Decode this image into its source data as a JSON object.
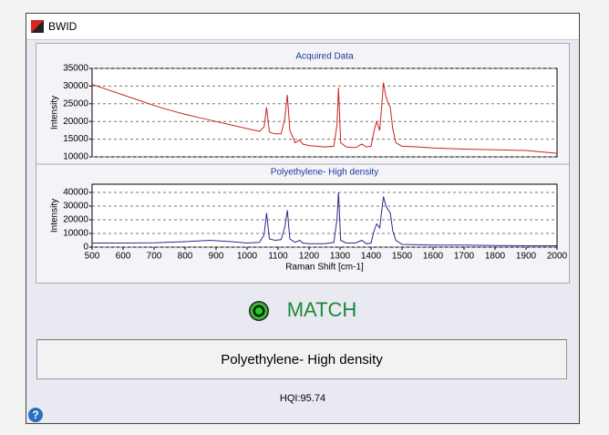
{
  "window": {
    "title": "BWID"
  },
  "chart_data": [
    {
      "type": "line",
      "title": "Acquired Data",
      "y_label": "Intensity",
      "xlim": [
        500,
        2000
      ],
      "ylim": [
        10000,
        35000
      ],
      "yticks": [
        10000,
        15000,
        20000,
        25000,
        30000,
        35000
      ],
      "grid": true,
      "series": [
        {
          "name": "Acquired Data",
          "color": "#cc2222",
          "x": [
            500,
            550,
            600,
            650,
            700,
            750,
            800,
            850,
            900,
            950,
            1000,
            1040,
            1055,
            1063,
            1072,
            1090,
            1110,
            1122,
            1130,
            1138,
            1155,
            1170,
            1180,
            1200,
            1250,
            1280,
            1290,
            1295,
            1302,
            1320,
            1350,
            1370,
            1385,
            1400,
            1410,
            1418,
            1428,
            1434,
            1440,
            1448,
            1456,
            1462,
            1470,
            1480,
            1500,
            1550,
            1600,
            1700,
            1800,
            1900,
            2000
          ],
          "values": [
            30500,
            29000,
            27500,
            26000,
            24500,
            23200,
            22000,
            21000,
            20000,
            19000,
            18000,
            17200,
            18500,
            24000,
            17000,
            16500,
            16500,
            21000,
            27500,
            17500,
            14000,
            14800,
            13600,
            13200,
            12800,
            13000,
            19000,
            29500,
            14000,
            12800,
            12600,
            13600,
            12800,
            13000,
            17500,
            20000,
            17500,
            24000,
            31000,
            27000,
            25000,
            24000,
            18000,
            14000,
            13000,
            12800,
            12500,
            12200,
            12000,
            11800,
            11000
          ]
        }
      ]
    },
    {
      "type": "line",
      "title": "Polyethylene- High density",
      "y_label": "Intensity",
      "x_label": "Raman Shift [cm-1]",
      "xlim": [
        500,
        2000
      ],
      "ylim": [
        0,
        46000
      ],
      "xticks": [
        500,
        600,
        700,
        800,
        900,
        1000,
        1100,
        1200,
        1300,
        1400,
        1500,
        1600,
        1700,
        1800,
        1900,
        2000
      ],
      "yticks": [
        0,
        10000,
        20000,
        30000,
        40000
      ],
      "grid": true,
      "series": [
        {
          "name": "Polyethylene- High density",
          "color": "#2a2a8a",
          "x": [
            500,
            600,
            700,
            800,
            880,
            950,
            1000,
            1040,
            1055,
            1063,
            1072,
            1090,
            1110,
            1122,
            1130,
            1138,
            1155,
            1170,
            1180,
            1200,
            1250,
            1280,
            1290,
            1295,
            1302,
            1320,
            1350,
            1370,
            1385,
            1400,
            1410,
            1418,
            1428,
            1434,
            1440,
            1448,
            1456,
            1462,
            1470,
            1480,
            1500,
            1600,
            1700,
            1800,
            1900,
            2000
          ],
          "values": [
            3000,
            3000,
            3200,
            4000,
            5000,
            4000,
            3000,
            3500,
            9000,
            25000,
            6000,
            5000,
            5500,
            15000,
            27000,
            6000,
            3500,
            5000,
            3000,
            2500,
            2500,
            3500,
            20000,
            40000,
            5000,
            3000,
            3000,
            5000,
            2500,
            3000,
            12000,
            17000,
            14000,
            26000,
            37000,
            30000,
            27000,
            25000,
            12000,
            5000,
            2000,
            1500,
            1500,
            1200,
            1000,
            1000
          ]
        }
      ]
    }
  ],
  "result": {
    "status": "MATCH",
    "name": "Polyethylene- High density",
    "hqi": "HQI:95.74"
  }
}
